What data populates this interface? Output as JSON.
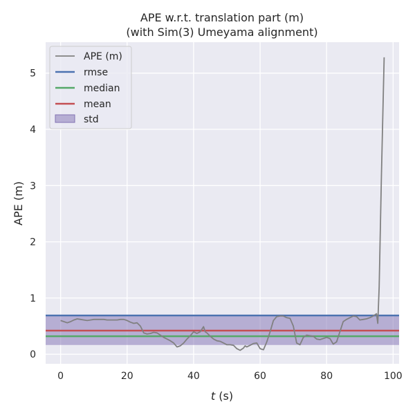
{
  "chart_data": {
    "type": "line",
    "title": "APE w.r.t. translation part (m)",
    "subtitle": "(with Sim(3) Umeyama alignment)",
    "xlabel_var": "t",
    "xlabel_unit": " (s)",
    "ylabel": "APE (m)",
    "xlim": [
      -4.5,
      101.8
    ],
    "ylim": [
      -0.17,
      5.55
    ],
    "xticks": [
      0,
      20,
      40,
      60,
      80,
      100
    ],
    "yticks": [
      0,
      1,
      2,
      3,
      4,
      5
    ],
    "grid": true,
    "legend_position": "top-left",
    "legend": [
      "APE (m)",
      "rmse",
      "median",
      "mean",
      "std"
    ],
    "stats": {
      "rmse": 0.69,
      "median": 0.32,
      "mean": 0.42,
      "std_band": [
        0.165,
        0.675
      ]
    },
    "colors": {
      "ape": "#808080",
      "rmse": "#4c72b0",
      "median": "#55a868",
      "mean": "#c44e52",
      "std": "#8172b3",
      "background": "#eaeaf2",
      "grid": "#ffffff"
    },
    "series": [
      {
        "name": "APE (m)",
        "x": [
          0,
          1,
          2,
          3,
          4,
          5,
          6,
          7,
          8,
          9,
          10,
          11,
          12,
          13,
          14,
          15,
          16,
          17,
          18,
          19,
          20,
          21,
          22,
          23,
          24,
          25,
          26,
          27,
          28,
          29,
          30,
          31,
          32,
          33,
          34,
          35,
          36,
          37,
          38,
          39,
          40,
          41,
          42,
          43,
          43.5,
          44,
          45,
          46,
          47,
          48,
          49,
          50,
          51,
          52,
          53,
          54,
          55,
          55.5,
          56,
          57,
          58,
          59,
          60,
          61,
          62,
          63,
          64,
          65,
          66,
          67,
          68,
          69,
          70,
          71,
          72,
          73,
          74,
          75,
          76,
          77,
          78,
          79,
          80,
          81,
          82,
          83,
          84,
          85,
          86,
          87,
          88,
          89,
          90,
          91,
          92,
          93,
          94,
          95,
          95.4,
          95.8,
          96.5,
          97.3
        ],
        "y": [
          0.6,
          0.58,
          0.56,
          0.58,
          0.61,
          0.63,
          0.62,
          0.61,
          0.6,
          0.61,
          0.62,
          0.62,
          0.62,
          0.62,
          0.61,
          0.61,
          0.61,
          0.61,
          0.62,
          0.62,
          0.6,
          0.57,
          0.55,
          0.56,
          0.5,
          0.38,
          0.36,
          0.37,
          0.39,
          0.38,
          0.34,
          0.3,
          0.27,
          0.24,
          0.2,
          0.13,
          0.15,
          0.2,
          0.27,
          0.33,
          0.4,
          0.37,
          0.4,
          0.49,
          0.4,
          0.38,
          0.32,
          0.27,
          0.24,
          0.23,
          0.2,
          0.17,
          0.17,
          0.16,
          0.1,
          0.07,
          0.11,
          0.15,
          0.13,
          0.16,
          0.19,
          0.2,
          0.1,
          0.08,
          0.22,
          0.4,
          0.6,
          0.67,
          0.68,
          0.68,
          0.65,
          0.64,
          0.5,
          0.2,
          0.17,
          0.3,
          0.34,
          0.33,
          0.32,
          0.27,
          0.26,
          0.28,
          0.3,
          0.28,
          0.18,
          0.22,
          0.4,
          0.58,
          0.62,
          0.65,
          0.68,
          0.67,
          0.61,
          0.62,
          0.63,
          0.65,
          0.68,
          0.72,
          0.55,
          1.2,
          3.2,
          5.28
        ]
      }
    ]
  }
}
